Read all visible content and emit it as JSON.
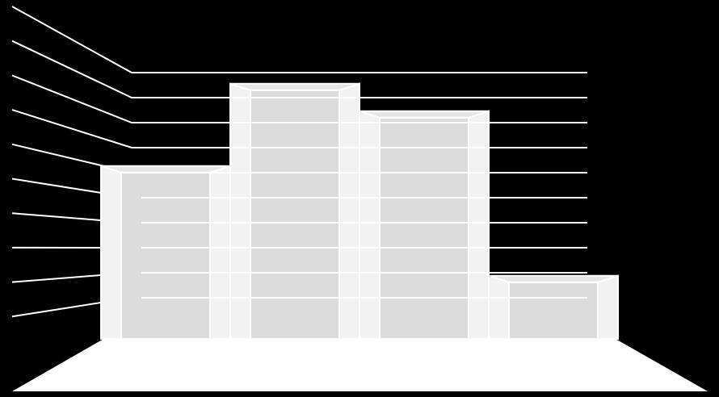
{
  "chart_data": {
    "type": "bar",
    "style": "3d-perspective",
    "title": "",
    "xlabel": "",
    "ylabel": "",
    "categories": [
      "",
      "",
      "",
      ""
    ],
    "values": [
      6.3,
      9.3,
      8.3,
      2.3
    ],
    "ylim": [
      0,
      10
    ],
    "grid": true,
    "legend": "none",
    "colors": {
      "background": "#000000",
      "gridline": "#ffffff",
      "floor": "#ffffff",
      "bar_front": "#dcdcdc",
      "bar_side": "#f2f2f2",
      "bar_top": "#e6e6e6",
      "bar_edge": "#ffffff"
    }
  }
}
